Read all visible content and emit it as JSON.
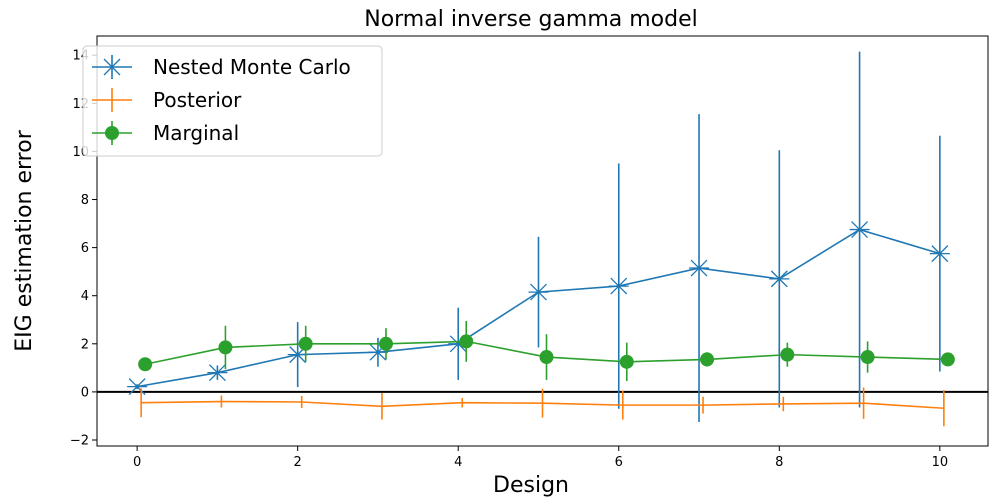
{
  "chart_data": {
    "type": "line",
    "title": "Normal inverse gamma model",
    "xlabel": "Design",
    "ylabel": "EIG estimation error",
    "xlim": [
      -0.5,
      10.6
    ],
    "ylim": [
      -2.25,
      14.8
    ],
    "x_ticks": [
      0,
      2,
      4,
      6,
      8,
      10
    ],
    "y_ticks": [
      -2,
      0,
      2,
      4,
      6,
      8,
      10,
      12,
      14
    ],
    "grid": false,
    "reference_line_y": 0,
    "legend_position": "top-left",
    "series": [
      {
        "name": "Nested Monte Carlo",
        "color": "#1f77b4",
        "marker": "x",
        "x": [
          0,
          1,
          2,
          3,
          4,
          5,
          6,
          7,
          8,
          9,
          10
        ],
        "y": [
          0.22,
          0.8,
          1.55,
          1.65,
          2.0,
          4.15,
          4.4,
          5.15,
          4.7,
          6.75,
          5.75
        ],
        "err": [
          0.1,
          0.3,
          1.35,
          0.6,
          1.5,
          2.3,
          5.1,
          6.4,
          5.35,
          7.4,
          4.9
        ]
      },
      {
        "name": "Posterior",
        "color": "#ff7f0e",
        "marker": "none",
        "x": [
          0,
          1,
          2,
          3,
          4,
          5,
          6,
          7,
          8,
          9,
          10
        ],
        "y": [
          -0.45,
          -0.4,
          -0.42,
          -0.6,
          -0.45,
          -0.47,
          -0.55,
          -0.55,
          -0.5,
          -0.47,
          -0.68
        ],
        "err": [
          0.6,
          0.25,
          0.25,
          0.55,
          0.2,
          0.6,
          0.6,
          0.35,
          0.3,
          0.65,
          0.75
        ]
      },
      {
        "name": "Marginal",
        "color": "#2ca02c",
        "marker": "o",
        "x": [
          0,
          1,
          2,
          3,
          4,
          5,
          6,
          7,
          8,
          9,
          10
        ],
        "y": [
          1.15,
          1.85,
          2.0,
          2.0,
          2.1,
          1.45,
          1.25,
          1.35,
          1.55,
          1.45,
          1.35
        ],
        "err": [
          0.2,
          0.9,
          0.75,
          0.65,
          0.85,
          0.95,
          0.8,
          0.3,
          0.5,
          0.65,
          0.2
        ]
      }
    ]
  }
}
